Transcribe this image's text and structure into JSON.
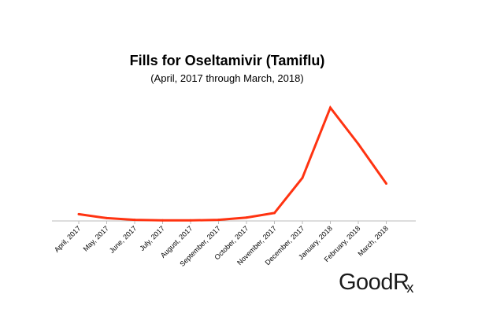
{
  "chart_data": {
    "type": "line",
    "title": "Fills for Oseltamivir (Tamiflu)",
    "subtitle": "(April, 2017 through March, 2018)",
    "categories": [
      "April, 2017",
      "May, 2017",
      "June, 2017",
      "July, 2017",
      "August, 2017",
      "September, 2017",
      "October, 2017",
      "November, 2017",
      "December, 2017",
      "January, 2018",
      "February, 2018",
      "March, 2018"
    ],
    "series": [
      {
        "values": [
          6,
          2.5,
          1,
          0.5,
          0.5,
          1,
          3,
          7,
          38,
          100,
          68,
          33
        ],
        "color": "#ff3311"
      }
    ],
    "xlabel": "",
    "ylabel": "",
    "ylim": [
      0,
      100
    ],
    "grid": false,
    "legend": "none",
    "axis_color": "#bbbbbb"
  },
  "brand": {
    "logo_text": "GoodRx"
  }
}
